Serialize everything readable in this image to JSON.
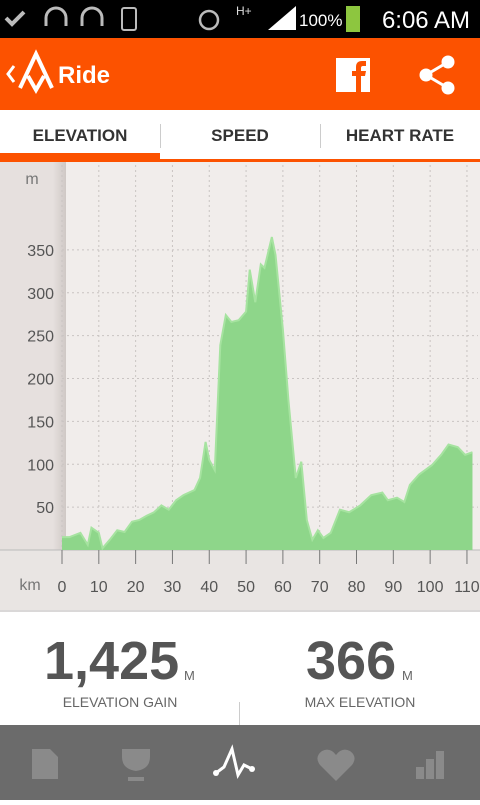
{
  "status_bar": {
    "network": "H+",
    "battery": "100%",
    "time": "6:06 AM"
  },
  "app_bar": {
    "title": "Ride"
  },
  "tabs": [
    "ELEVATION",
    "SPEED",
    "HEART RATE"
  ],
  "chart_data": {
    "type": "area",
    "y_label": "m",
    "x_label": "km",
    "color": "#8ed68a",
    "line_color": "#a6e3a0",
    "x": [
      0,
      2,
      5,
      7,
      8,
      10,
      11,
      13,
      15,
      17,
      19,
      21,
      23,
      25,
      27,
      29,
      31,
      33,
      36,
      37.5,
      39,
      40,
      41.5,
      43,
      44.5,
      46,
      48,
      50,
      51,
      52.5,
      54,
      55,
      57,
      58,
      60,
      61.5,
      63.5,
      65,
      66.5,
      68,
      69.5,
      71,
      73,
      75.5,
      78,
      81,
      84,
      87,
      88.5,
      91,
      93,
      94.5,
      97,
      100.5,
      103,
      105,
      107.5,
      109.5,
      111.5
    ],
    "values": [
      15,
      15,
      20,
      6,
      26,
      20,
      2,
      12,
      23,
      21,
      33,
      35,
      40,
      44,
      52,
      47,
      58,
      64,
      70,
      84,
      126,
      105,
      93,
      239,
      274,
      266,
      268,
      278,
      327,
      289,
      333,
      329,
      365,
      344,
      257,
      175,
      84,
      103,
      35,
      12,
      23,
      14,
      20,
      47,
      44,
      52,
      64,
      67,
      58,
      61,
      56,
      76,
      88,
      99,
      111,
      123,
      120,
      111,
      114
    ],
    "xlim": [
      0,
      113
    ],
    "ylim": [
      0,
      449
    ],
    "xticks": [
      0,
      10,
      20,
      30,
      40,
      50,
      60,
      70,
      80,
      90,
      100,
      110
    ],
    "yticks": [
      50,
      100,
      150,
      200,
      250,
      300,
      350
    ],
    "grid": true
  },
  "stats": [
    {
      "value": "1,425",
      "unit": "M",
      "label": "ELEVATION GAIN"
    },
    {
      "value": "366",
      "unit": "M",
      "label": "MAX ELEVATION"
    }
  ]
}
